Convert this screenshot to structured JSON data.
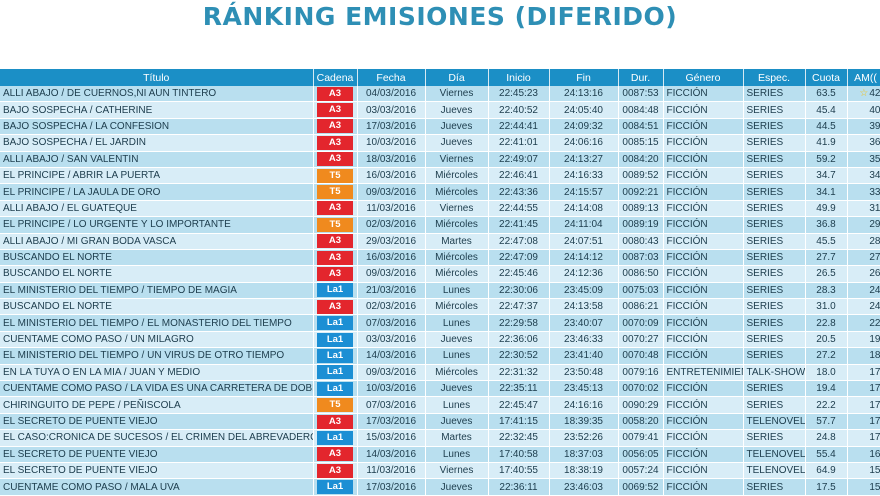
{
  "title": "RÁNKING EMISIONES (DIFERIDO)",
  "columns": [
    "Título",
    "Cadena",
    "Fecha",
    "Día",
    "Inicio",
    "Fin",
    "Dur.",
    "Género",
    "Espec.",
    "Cuota",
    "AM(("
  ],
  "colors": {
    "title": "#2e8fb5",
    "header_bg": "#1b8fc6",
    "row_bg": "#b9dfef",
    "row_alt_bg": "#d8edf7",
    "A3": "#e3262d",
    "T5": "#f08a1e",
    "La1": "#1c8fd4",
    "star": "#f2c21a"
  },
  "rows": [
    {
      "titulo": "ALLI ABAJO / DE CUERNOS,NI AUN TINTERO",
      "cadena": "A3",
      "fecha": "04/03/2016",
      "dia": "Viernes",
      "inicio": "22:45:23",
      "fin": "24:13:16",
      "dur": "0087:53",
      "genero": "FICCIÓN",
      "espec": "SERIES",
      "cuota": "63.5",
      "am": "42",
      "star": true
    },
    {
      "titulo": "BAJO SOSPECHA / CATHERINE",
      "cadena": "A3",
      "fecha": "03/03/2016",
      "dia": "Jueves",
      "inicio": "22:40:52",
      "fin": "24:05:40",
      "dur": "0084:48",
      "genero": "FICCIÓN",
      "espec": "SERIES",
      "cuota": "45.4",
      "am": "40",
      "star": false
    },
    {
      "titulo": "BAJO SOSPECHA / LA CONFESION",
      "cadena": "A3",
      "fecha": "17/03/2016",
      "dia": "Jueves",
      "inicio": "22:44:41",
      "fin": "24:09:32",
      "dur": "0084:51",
      "genero": "FICCIÓN",
      "espec": "SERIES",
      "cuota": "44.5",
      "am": "39",
      "star": false
    },
    {
      "titulo": "BAJO SOSPECHA / EL JARDIN",
      "cadena": "A3",
      "fecha": "10/03/2016",
      "dia": "Jueves",
      "inicio": "22:41:01",
      "fin": "24:06:16",
      "dur": "0085:15",
      "genero": "FICCIÓN",
      "espec": "SERIES",
      "cuota": "41.9",
      "am": "36",
      "star": false
    },
    {
      "titulo": "ALLI ABAJO / SAN VALENTIN",
      "cadena": "A3",
      "fecha": "18/03/2016",
      "dia": "Viernes",
      "inicio": "22:49:07",
      "fin": "24:13:27",
      "dur": "0084:20",
      "genero": "FICCIÓN",
      "espec": "SERIES",
      "cuota": "59.2",
      "am": "35",
      "star": false
    },
    {
      "titulo": "EL PRINCIPE / ABRIR LA PUERTA",
      "cadena": "T5",
      "fecha": "16/03/2016",
      "dia": "Miércoles",
      "inicio": "22:46:41",
      "fin": "24:16:33",
      "dur": "0089:52",
      "genero": "FICCIÓN",
      "espec": "SERIES",
      "cuota": "34.7",
      "am": "34",
      "star": false
    },
    {
      "titulo": "EL PRINCIPE / LA JAULA DE ORO",
      "cadena": "T5",
      "fecha": "09/03/2016",
      "dia": "Miércoles",
      "inicio": "22:43:36",
      "fin": "24:15:57",
      "dur": "0092:21",
      "genero": "FICCIÓN",
      "espec": "SERIES",
      "cuota": "34.1",
      "am": "33",
      "star": false
    },
    {
      "titulo": "ALLI ABAJO / EL GUATEQUE",
      "cadena": "A3",
      "fecha": "11/03/2016",
      "dia": "Viernes",
      "inicio": "22:44:55",
      "fin": "24:14:08",
      "dur": "0089:13",
      "genero": "FICCIÓN",
      "espec": "SERIES",
      "cuota": "49.9",
      "am": "31",
      "star": false
    },
    {
      "titulo": "EL PRINCIPE / LO URGENTE Y LO IMPORTANTE",
      "cadena": "T5",
      "fecha": "02/03/2016",
      "dia": "Miércoles",
      "inicio": "22:41:45",
      "fin": "24:11:04",
      "dur": "0089:19",
      "genero": "FICCIÓN",
      "espec": "SERIES",
      "cuota": "36.8",
      "am": "29",
      "star": false
    },
    {
      "titulo": "ALLI ABAJO / MI GRAN BODA VASCA",
      "cadena": "A3",
      "fecha": "29/03/2016",
      "dia": "Martes",
      "inicio": "22:47:08",
      "fin": "24:07:51",
      "dur": "0080:43",
      "genero": "FICCIÓN",
      "espec": "SERIES",
      "cuota": "45.5",
      "am": "28",
      "star": false
    },
    {
      "titulo": "BUSCANDO EL NORTE",
      "cadena": "A3",
      "fecha": "16/03/2016",
      "dia": "Miércoles",
      "inicio": "22:47:09",
      "fin": "24:14:12",
      "dur": "0087:03",
      "genero": "FICCIÓN",
      "espec": "SERIES",
      "cuota": "27.7",
      "am": "27",
      "star": false
    },
    {
      "titulo": "BUSCANDO EL NORTE",
      "cadena": "A3",
      "fecha": "09/03/2016",
      "dia": "Miércoles",
      "inicio": "22:45:46",
      "fin": "24:12:36",
      "dur": "0086:50",
      "genero": "FICCIÓN",
      "espec": "SERIES",
      "cuota": "26.5",
      "am": "26",
      "star": false
    },
    {
      "titulo": "EL MINISTERIO DEL TIEMPO / TIEMPO DE MAGIA",
      "cadena": "La1",
      "fecha": "21/03/2016",
      "dia": "Lunes",
      "inicio": "22:30:06",
      "fin": "23:45:09",
      "dur": "0075:03",
      "genero": "FICCIÓN",
      "espec": "SERIES",
      "cuota": "28.3",
      "am": "24",
      "star": false
    },
    {
      "titulo": "BUSCANDO EL NORTE",
      "cadena": "A3",
      "fecha": "02/03/2016",
      "dia": "Miércoles",
      "inicio": "22:47:37",
      "fin": "24:13:58",
      "dur": "0086:21",
      "genero": "FICCIÓN",
      "espec": "SERIES",
      "cuota": "31.0",
      "am": "24",
      "star": false
    },
    {
      "titulo": "EL MINISTERIO DEL TIEMPO / EL MONASTERIO DEL TIEMPO",
      "cadena": "La1",
      "fecha": "07/03/2016",
      "dia": "Lunes",
      "inicio": "22:29:58",
      "fin": "23:40:07",
      "dur": "0070:09",
      "genero": "FICCIÓN",
      "espec": "SERIES",
      "cuota": "22.8",
      "am": "22",
      "star": false
    },
    {
      "titulo": "CUENTAME COMO PASO / UN MILAGRO",
      "cadena": "La1",
      "fecha": "03/03/2016",
      "dia": "Jueves",
      "inicio": "22:36:06",
      "fin": "23:46:33",
      "dur": "0070:27",
      "genero": "FICCIÓN",
      "espec": "SERIES",
      "cuota": "20.5",
      "am": "19",
      "star": false
    },
    {
      "titulo": "EL MINISTERIO DEL TIEMPO / UN VIRUS DE OTRO TIEMPO",
      "cadena": "La1",
      "fecha": "14/03/2016",
      "dia": "Lunes",
      "inicio": "22:30:52",
      "fin": "23:41:40",
      "dur": "0070:48",
      "genero": "FICCIÓN",
      "espec": "SERIES",
      "cuota": "27.2",
      "am": "18",
      "star": false
    },
    {
      "titulo": "EN LA TUYA O EN LA MIA / JUAN Y MEDIO",
      "cadena": "La1",
      "fecha": "09/03/2016",
      "dia": "Miércoles",
      "inicio": "22:31:32",
      "fin": "23:50:48",
      "dur": "0079:16",
      "genero": "ENTRETENIMIEN",
      "espec": "TALK-SHOW",
      "cuota": "18.0",
      "am": "17",
      "star": false
    },
    {
      "titulo": "CUENTAME COMO PASO / LA VIDA ES UNA CARRETERA DE DOBL",
      "cadena": "La1",
      "fecha": "10/03/2016",
      "dia": "Jueves",
      "inicio": "22:35:11",
      "fin": "23:45:13",
      "dur": "0070:02",
      "genero": "FICCIÓN",
      "espec": "SERIES",
      "cuota": "19.4",
      "am": "17",
      "star": false
    },
    {
      "titulo": "CHIRINGUITO DE PEPE / PEÑISCOLA",
      "cadena": "T5",
      "fecha": "07/03/2016",
      "dia": "Lunes",
      "inicio": "22:45:47",
      "fin": "24:16:16",
      "dur": "0090:29",
      "genero": "FICCIÓN",
      "espec": "SERIES",
      "cuota": "22.2",
      "am": "17",
      "star": false
    },
    {
      "titulo": "EL SECRETO DE PUENTE VIEJO",
      "cadena": "A3",
      "fecha": "17/03/2016",
      "dia": "Jueves",
      "inicio": "17:41:15",
      "fin": "18:39:35",
      "dur": "0058:20",
      "genero": "FICCIÓN",
      "espec": "TELENOVEL",
      "cuota": "57.7",
      "am": "17",
      "star": false
    },
    {
      "titulo": "EL CASO:CRONICA DE SUCESOS / EL CRIMEN DEL ABREVADERO",
      "cadena": "La1",
      "fecha": "15/03/2016",
      "dia": "Martes",
      "inicio": "22:32:45",
      "fin": "23:52:26",
      "dur": "0079:41",
      "genero": "FICCIÓN",
      "espec": "SERIES",
      "cuota": "24.8",
      "am": "17",
      "star": false
    },
    {
      "titulo": "EL SECRETO DE PUENTE VIEJO",
      "cadena": "A3",
      "fecha": "14/03/2016",
      "dia": "Lunes",
      "inicio": "17:40:58",
      "fin": "18:37:03",
      "dur": "0056:05",
      "genero": "FICCIÓN",
      "espec": "TELENOVEL",
      "cuota": "55.4",
      "am": "16",
      "star": false
    },
    {
      "titulo": "EL SECRETO DE PUENTE VIEJO",
      "cadena": "A3",
      "fecha": "11/03/2016",
      "dia": "Viernes",
      "inicio": "17:40:55",
      "fin": "18:38:19",
      "dur": "0057:24",
      "genero": "FICCIÓN",
      "espec": "TELENOVEL",
      "cuota": "64.9",
      "am": "15",
      "star": false
    },
    {
      "titulo": "CUENTAME COMO PASO / MALA UVA",
      "cadena": "La1",
      "fecha": "17/03/2016",
      "dia": "Jueves",
      "inicio": "22:36:11",
      "fin": "23:46:03",
      "dur": "0069:52",
      "genero": "FICCIÓN",
      "espec": "SERIES",
      "cuota": "17.5",
      "am": "15",
      "star": false
    }
  ]
}
